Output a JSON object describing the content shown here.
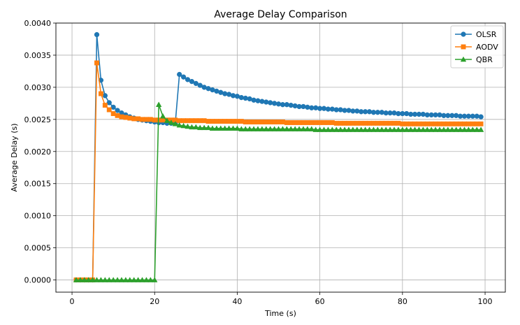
{
  "chart_data": {
    "type": "line",
    "title": "Average Delay Comparison",
    "xlabel": "Time (s)",
    "ylabel": "Average Delay (s)",
    "xlim": [
      -3.9,
      104.9
    ],
    "ylim": [
      -0.00019,
      0.004
    ],
    "xticks": [
      0,
      20,
      40,
      60,
      80,
      100
    ],
    "xtick_labels": [
      "0",
      "20",
      "40",
      "60",
      "80",
      "100"
    ],
    "yticks": [
      0.0,
      0.0005,
      0.001,
      0.0015,
      0.002,
      0.0025,
      0.003,
      0.0035,
      0.004
    ],
    "ytick_labels": [
      "0.0000",
      "0.0005",
      "0.0010",
      "0.0015",
      "0.0020",
      "0.0025",
      "0.0030",
      "0.0035",
      "0.0040"
    ],
    "grid": true,
    "legend_position": "top-right",
    "x": [
      1,
      2,
      3,
      4,
      5,
      6,
      7,
      8,
      9,
      10,
      11,
      12,
      13,
      14,
      15,
      16,
      17,
      18,
      19,
      20,
      21,
      22,
      23,
      24,
      25,
      26,
      27,
      28,
      29,
      30,
      31,
      32,
      33,
      34,
      35,
      36,
      37,
      38,
      39,
      40,
      41,
      42,
      43,
      44,
      45,
      46,
      47,
      48,
      49,
      50,
      51,
      52,
      53,
      54,
      55,
      56,
      57,
      58,
      59,
      60,
      61,
      62,
      63,
      64,
      65,
      66,
      67,
      68,
      69,
      70,
      71,
      72,
      73,
      74,
      75,
      76,
      77,
      78,
      79,
      80,
      81,
      82,
      83,
      84,
      85,
      86,
      87,
      88,
      89,
      90,
      91,
      92,
      93,
      94,
      95,
      96,
      97,
      98,
      99
    ],
    "series": [
      {
        "name": "OLSR",
        "color": "#1f77b4",
        "marker": "circle",
        "values": [
          0,
          0,
          0,
          0,
          0,
          0.00382,
          0.00311,
          0.00287,
          0.00276,
          0.00269,
          0.00264,
          0.0026,
          0.00257,
          0.00254,
          0.00252,
          0.0025,
          0.00249,
          0.00248,
          0.00247,
          0.00246,
          0.00245,
          0.00245,
          0.00244,
          0.00244,
          0.00244,
          0.0032,
          0.00316,
          0.00312,
          0.00309,
          0.00306,
          0.00303,
          0.003,
          0.00298,
          0.00296,
          0.00294,
          0.00292,
          0.0029,
          0.00289,
          0.00287,
          0.00286,
          0.00284,
          0.00283,
          0.00282,
          0.0028,
          0.00279,
          0.00278,
          0.00277,
          0.00276,
          0.00275,
          0.00274,
          0.00273,
          0.00273,
          0.00272,
          0.00271,
          0.0027,
          0.0027,
          0.00269,
          0.00268,
          0.00268,
          0.00267,
          0.00267,
          0.00266,
          0.00266,
          0.00265,
          0.00265,
          0.00264,
          0.00264,
          0.00263,
          0.00263,
          0.00262,
          0.00262,
          0.00262,
          0.00261,
          0.00261,
          0.00261,
          0.0026,
          0.0026,
          0.0026,
          0.00259,
          0.00259,
          0.00259,
          0.00258,
          0.00258,
          0.00258,
          0.00258,
          0.00257,
          0.00257,
          0.00257,
          0.00257,
          0.00256,
          0.00256,
          0.00256,
          0.00256,
          0.00255,
          0.00255,
          0.00255,
          0.00255,
          0.00255,
          0.00254
        ]
      },
      {
        "name": "AODV",
        "color": "#ff7f0e",
        "marker": "square",
        "values": [
          0,
          0,
          0,
          0,
          0,
          0.00338,
          0.0029,
          0.00272,
          0.00265,
          0.00259,
          0.00256,
          0.00254,
          0.00253,
          0.00252,
          0.00251,
          0.00251,
          0.0025,
          0.0025,
          0.0025,
          0.00249,
          0.00249,
          0.00249,
          0.00249,
          0.00249,
          0.00249,
          0.00248,
          0.00248,
          0.00248,
          0.00248,
          0.00248,
          0.00248,
          0.00248,
          0.00247,
          0.00247,
          0.00247,
          0.00247,
          0.00247,
          0.00247,
          0.00247,
          0.00247,
          0.00247,
          0.00246,
          0.00246,
          0.00246,
          0.00246,
          0.00246,
          0.00246,
          0.00246,
          0.00246,
          0.00246,
          0.00246,
          0.00245,
          0.00245,
          0.00245,
          0.00245,
          0.00245,
          0.00245,
          0.00245,
          0.00245,
          0.00245,
          0.00245,
          0.00245,
          0.00245,
          0.00244,
          0.00244,
          0.00244,
          0.00244,
          0.00244,
          0.00244,
          0.00244,
          0.00244,
          0.00244,
          0.00244,
          0.00244,
          0.00244,
          0.00244,
          0.00244,
          0.00244,
          0.00244,
          0.00243,
          0.00243,
          0.00243,
          0.00243,
          0.00243,
          0.00243,
          0.00243,
          0.00243,
          0.00243,
          0.00243,
          0.00243,
          0.00243,
          0.00243,
          0.00243,
          0.00243,
          0.00243,
          0.00243,
          0.00243,
          0.00243,
          0.00243
        ]
      },
      {
        "name": "QBR",
        "color": "#2ca02c",
        "marker": "triangle",
        "values": [
          0,
          0,
          0,
          0,
          0,
          0,
          0,
          0,
          0,
          0,
          0,
          0,
          0,
          0,
          0,
          0,
          0,
          0,
          0,
          0,
          0.00273,
          0.00255,
          0.00248,
          0.00245,
          0.00243,
          0.00241,
          0.0024,
          0.00239,
          0.00238,
          0.00238,
          0.00237,
          0.00237,
          0.00237,
          0.00236,
          0.00236,
          0.00236,
          0.00236,
          0.00236,
          0.00236,
          0.00236,
          0.00235,
          0.00235,
          0.00235,
          0.00235,
          0.00235,
          0.00235,
          0.00235,
          0.00235,
          0.00235,
          0.00235,
          0.00235,
          0.00235,
          0.00235,
          0.00235,
          0.00235,
          0.00235,
          0.00235,
          0.00235,
          0.00234,
          0.00234,
          0.00234,
          0.00234,
          0.00234,
          0.00234,
          0.00234,
          0.00234,
          0.00234,
          0.00234,
          0.00234,
          0.00234,
          0.00234,
          0.00234,
          0.00234,
          0.00234,
          0.00234,
          0.00234,
          0.00234,
          0.00234,
          0.00234,
          0.00234,
          0.00234,
          0.00234,
          0.00234,
          0.00234,
          0.00234,
          0.00234,
          0.00234,
          0.00234,
          0.00234,
          0.00234,
          0.00234,
          0.00234,
          0.00234,
          0.00234,
          0.00234,
          0.00234,
          0.00234,
          0.00234,
          0.00234
        ]
      }
    ]
  }
}
